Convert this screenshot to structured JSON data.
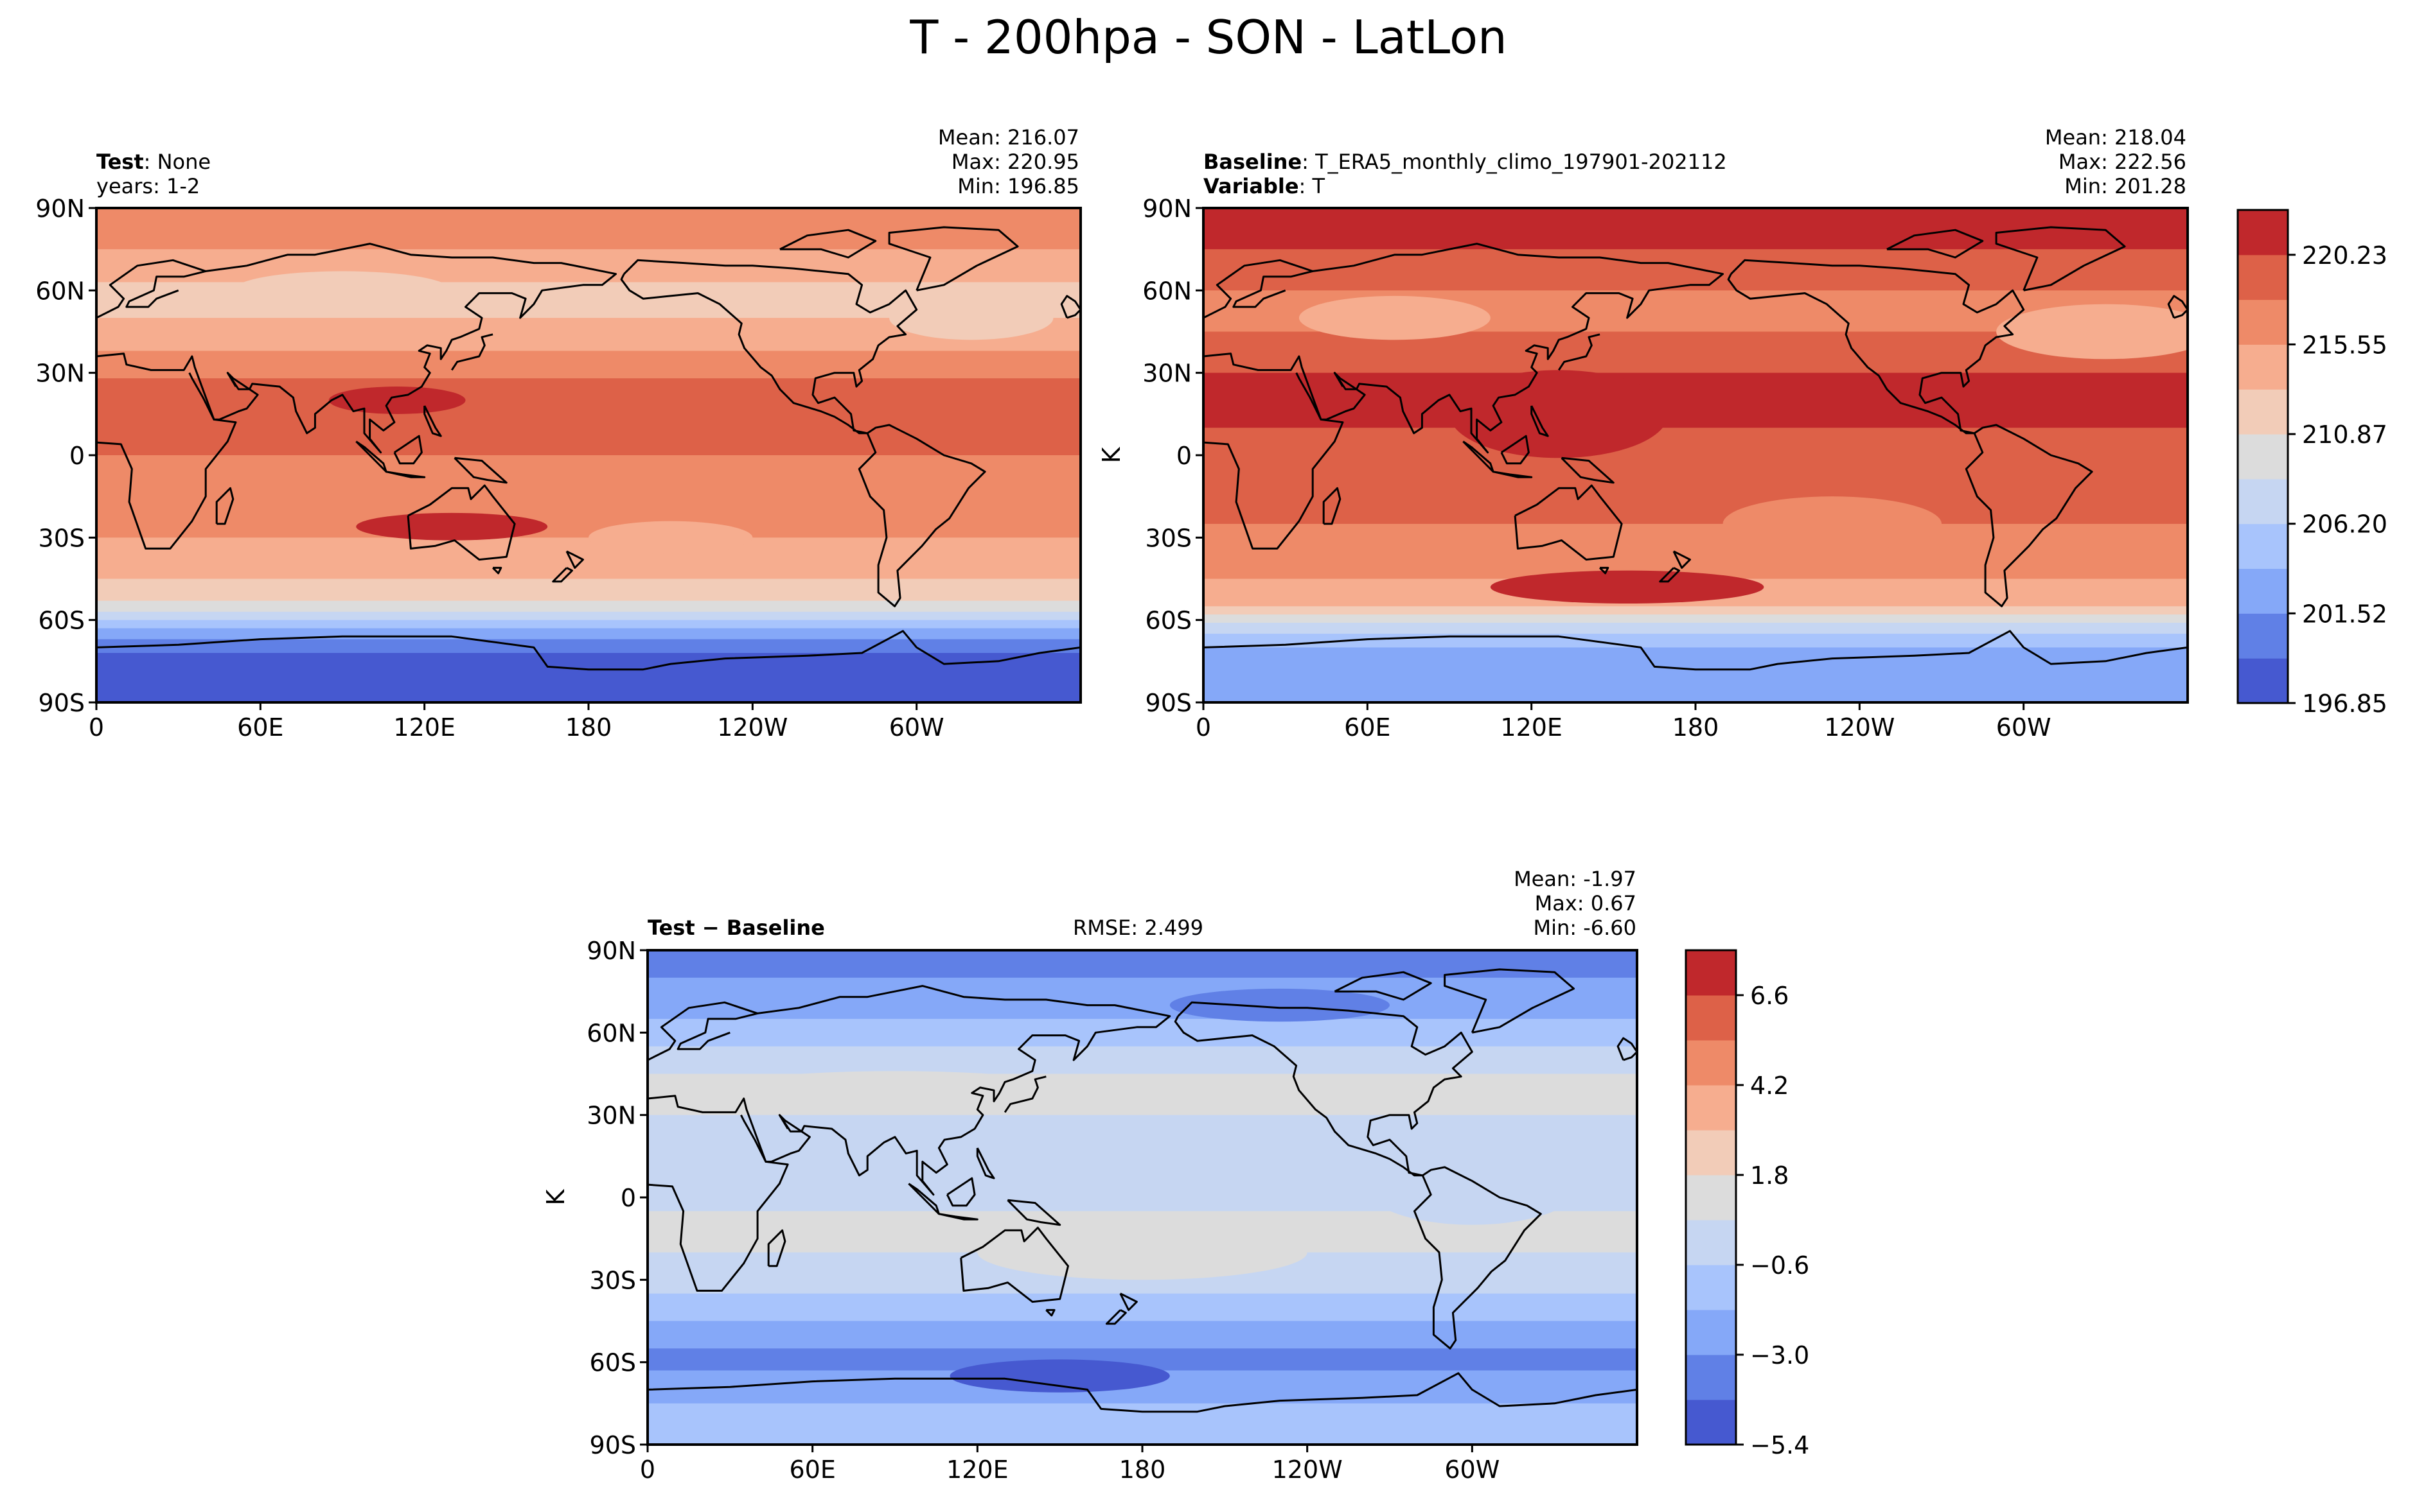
{
  "figure": {
    "title": "T - 200hpa - SON - LatLon"
  },
  "chart_data": [
    {
      "type": "heatmap",
      "panel": "test",
      "header": {
        "line1_bold": "Test",
        "line1_rest": ": None",
        "line2": "years: 1-2"
      },
      "stats": [
        "Mean: 216.07",
        "Max: 220.95",
        "Min: 196.85"
      ],
      "xticks": [
        "0",
        "60E",
        "120E",
        "180",
        "120W",
        "60W"
      ],
      "yticks": [
        "90N",
        "60N",
        "30N",
        "0",
        "30S",
        "60S",
        "90S"
      ],
      "xlim": [
        0,
        360
      ],
      "ylim": [
        -90,
        90
      ],
      "levels": [
        196.85,
        199.19,
        201.52,
        203.86,
        206.2,
        208.53,
        210.87,
        213.21,
        215.55,
        217.89,
        220.23,
        222.56
      ],
      "colors": [
        "#4659d0",
        "#6080e6",
        "#85a8f8",
        "#a8c4fc",
        "#c6d6f2",
        "#dcdcdc",
        "#f2ccb8",
        "#f6ad8f",
        "#ee8a68",
        "#dd6148",
        "#c0282c"
      ]
    },
    {
      "type": "heatmap",
      "panel": "baseline",
      "header": {
        "line1_bold": "Baseline",
        "line1_rest": ": T_ERA5_monthly_climo_197901-202112",
        "line2_bold": "Variable",
        "line2_rest": ": T"
      },
      "stats": [
        "Mean: 218.04",
        "Max: 222.56",
        "Min: 201.28"
      ],
      "ylabel": "K",
      "xticks": [
        "0",
        "60E",
        "120E",
        "180",
        "120W",
        "60W"
      ],
      "yticks": [
        "90N",
        "60N",
        "30N",
        "0",
        "30S",
        "60S",
        "90S"
      ],
      "xlim": [
        0,
        360
      ],
      "ylim": [
        -90,
        90
      ],
      "colorbar_ticks": [
        "220.23",
        "215.55",
        "210.87",
        "206.20",
        "201.52",
        "196.85"
      ]
    },
    {
      "type": "heatmap",
      "panel": "difference",
      "header": {
        "line1_bold": "Test − Baseline",
        "rmse": "RMSE: 2.499"
      },
      "stats": [
        "Mean: -1.97",
        "Max:  0.67",
        "Min: -6.60"
      ],
      "ylabel": "K",
      "xticks": [
        "0",
        "60E",
        "120E",
        "180",
        "120W",
        "60W"
      ],
      "yticks": [
        "90N",
        "60N",
        "30N",
        "0",
        "30S",
        "60S",
        "90S"
      ],
      "xlim": [
        0,
        360
      ],
      "ylim": [
        -90,
        90
      ],
      "levels": [
        -6.6,
        -5.4,
        -4.2,
        -3.0,
        -1.8,
        -0.6,
        0.6,
        1.8,
        3.0,
        4.2,
        5.4,
        6.6
      ],
      "colorbar_ticks": [
        "6.6",
        "4.2",
        "1.8",
        "−0.6",
        "−3.0",
        "−5.4"
      ],
      "colors": [
        "#4659d0",
        "#6080e6",
        "#85a8f8",
        "#a8c4fc",
        "#c6d6f2",
        "#dcdcdc",
        "#f2ccb8",
        "#f6ad8f",
        "#ee8a68",
        "#dd6148",
        "#c0282c"
      ]
    }
  ]
}
